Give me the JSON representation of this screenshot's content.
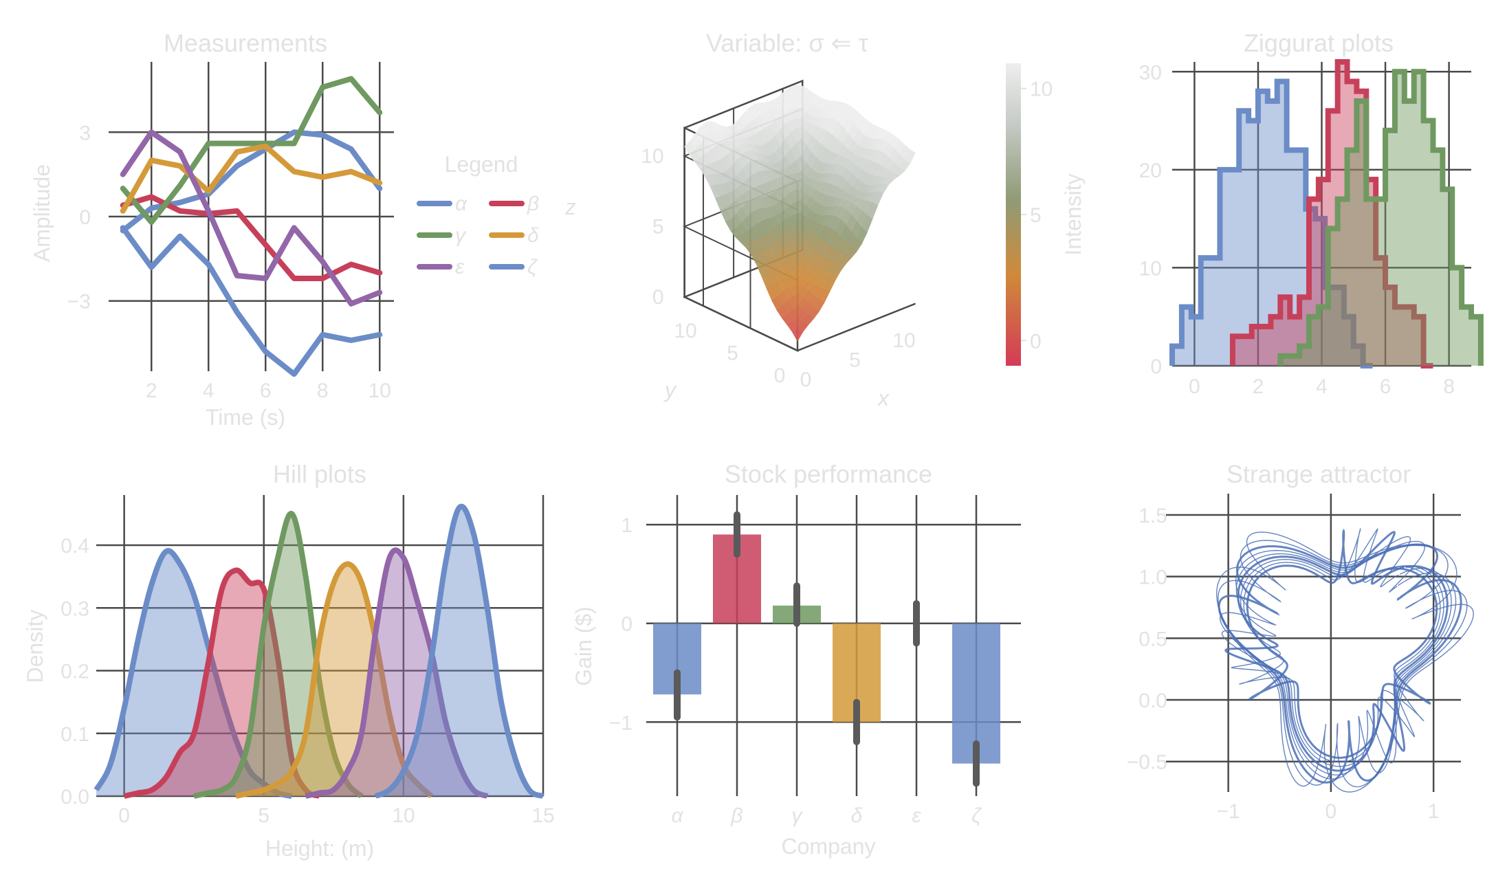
{
  "colors": {
    "blue": "#6b8cc7",
    "red": "#c7405a",
    "green": "#6f9960",
    "orange": "#d49a3a",
    "purple": "#9266a8",
    "grid": "#4a4a4a",
    "text": "#e2e2e2"
  },
  "chart_data": [
    {
      "type": "line",
      "title": "Measurements",
      "xlabel": "Time (s)",
      "ylabel": "Amplitude",
      "xlim": [
        0.5,
        10.5
      ],
      "ylim": [
        -5.5,
        5.5
      ],
      "xticks": [
        2,
        4,
        6,
        8,
        10
      ],
      "xtick_labels": [
        "2",
        "4",
        "6",
        "8",
        "10"
      ],
      "yticks": [
        -3,
        0,
        3
      ],
      "ytick_labels": [
        "−3",
        "0",
        "3"
      ],
      "grid": true,
      "legend": {
        "title": "Legend",
        "placement": "right"
      },
      "x": [
        1,
        2,
        3,
        4,
        5,
        6,
        7,
        8,
        9,
        10
      ],
      "series": [
        {
          "name": "α",
          "color": "#6b8cc7",
          "values": [
            -0.5,
            0.3,
            0.5,
            0.8,
            1.8,
            2.4,
            3.0,
            2.9,
            2.4,
            1.0
          ]
        },
        {
          "name": "β",
          "color": "#c7405a",
          "values": [
            0.4,
            0.7,
            0.2,
            0.1,
            0.2,
            -1.0,
            -2.2,
            -2.2,
            -1.7,
            -2.0
          ]
        },
        {
          "name": "γ",
          "color": "#6f9960",
          "values": [
            1.0,
            -0.2,
            1.1,
            2.6,
            2.6,
            2.6,
            2.6,
            4.6,
            4.9,
            3.7
          ]
        },
        {
          "name": "δ",
          "color": "#d49a3a",
          "values": [
            0.2,
            2.0,
            1.8,
            0.9,
            2.3,
            2.5,
            1.6,
            1.4,
            1.6,
            1.2
          ]
        },
        {
          "name": "ε",
          "color": "#9266a8",
          "values": [
            1.5,
            3.0,
            2.3,
            0.2,
            -2.1,
            -2.2,
            -0.4,
            -1.6,
            -3.1,
            -2.7
          ]
        },
        {
          "name": "ζ",
          "color": "#6b8cc7",
          "values": [
            -0.4,
            -1.8,
            -0.7,
            -1.7,
            -3.4,
            -4.8,
            -5.6,
            -4.2,
            -4.4,
            -4.2
          ]
        }
      ]
    },
    {
      "type": "surface",
      "title": "Variable: σ ⇐ τ",
      "xlabel": "x",
      "ylabel": "y",
      "zlabel": "z",
      "xlim": [
        0,
        12
      ],
      "ylim": [
        0,
        12
      ],
      "zlim": [
        0,
        12
      ],
      "xtick_labels": [
        "0",
        "5",
        "10"
      ],
      "ytick_labels": [
        "0",
        "5",
        "10"
      ],
      "ztick_labels": [
        "0",
        "5",
        "10"
      ],
      "colorbar": {
        "label": "Intensity",
        "tick_labels": [
          "0",
          "5",
          "10"
        ],
        "range": [
          -1,
          11
        ]
      },
      "grid": true
    },
    {
      "type": "histogram",
      "title": "Ziggurat plots",
      "xlim": [
        -0.7,
        8.7
      ],
      "ylim": [
        0,
        31
      ],
      "xticks": [
        0,
        2,
        4,
        6,
        8
      ],
      "xtick_labels": [
        "0",
        "2",
        "4",
        "6",
        "8"
      ],
      "yticks": [
        0,
        10,
        20,
        30
      ],
      "ytick_labels": [
        "0",
        "10",
        "20",
        "30"
      ],
      "grid": true,
      "bin_width": 0.3,
      "series": [
        {
          "color": "#6b8cc7",
          "start": -0.7,
          "counts": [
            2,
            6,
            5,
            11,
            11,
            20,
            20,
            26,
            25,
            28,
            27,
            29,
            22,
            22,
            16,
            15,
            8,
            8,
            5,
            2,
            0
          ]
        },
        {
          "color": "#c7405a",
          "start": 1.2,
          "counts": [
            3,
            3,
            4,
            4,
            5,
            7,
            5,
            7,
            17,
            19,
            26,
            31,
            29,
            28,
            19,
            11,
            8,
            6,
            6,
            5,
            0
          ]
        },
        {
          "color": "#6f9960",
          "start": 2.7,
          "counts": [
            1,
            1,
            2,
            5,
            6,
            14,
            17,
            22,
            27,
            17,
            17,
            24,
            30,
            27,
            30,
            25,
            22,
            18,
            10,
            6,
            5
          ]
        }
      ]
    },
    {
      "type": "area",
      "title": "Hill plots",
      "xlabel": "Height: (m)",
      "ylabel": "Density",
      "xlim": [
        -1,
        15
      ],
      "ylim": [
        0,
        0.48
      ],
      "xticks": [
        0,
        5,
        10,
        15
      ],
      "xtick_labels": [
        "0",
        "5",
        "10",
        "15"
      ],
      "yticks": [
        0,
        0.1,
        0.2,
        0.3,
        0.4
      ],
      "ytick_labels": [
        "0.0",
        "0.1",
        "0.2",
        "0.3",
        "0.4"
      ],
      "grid": true,
      "series": [
        {
          "color": "#6b8cc7",
          "x": [
            -1,
            -0.5,
            0,
            0.5,
            1,
            1.5,
            2,
            2.5,
            3,
            3.5,
            4,
            4.5,
            5,
            5.5,
            6
          ],
          "values": [
            0.01,
            0.05,
            0.14,
            0.25,
            0.34,
            0.39,
            0.37,
            0.32,
            0.24,
            0.16,
            0.09,
            0.04,
            0.02,
            0.005,
            0
          ]
        },
        {
          "color": "#c7405a",
          "x": [
            0,
            0.5,
            1,
            1.5,
            2,
            2.5,
            3,
            3.5,
            4,
            4.5,
            5,
            5.5,
            6,
            6.5,
            7
          ],
          "values": [
            0,
            0.005,
            0.01,
            0.03,
            0.07,
            0.1,
            0.21,
            0.33,
            0.36,
            0.34,
            0.33,
            0.22,
            0.06,
            0.01,
            0
          ]
        },
        {
          "color": "#6f9960",
          "x": [
            2.5,
            3,
            3.5,
            4,
            4.5,
            5,
            5.5,
            6,
            6.5,
            7,
            7.5,
            8,
            8.5
          ],
          "values": [
            0,
            0.005,
            0.01,
            0.03,
            0.1,
            0.27,
            0.38,
            0.45,
            0.35,
            0.18,
            0.07,
            0.02,
            0
          ]
        },
        {
          "color": "#d49a3a",
          "x": [
            4,
            4.5,
            5,
            5.5,
            6,
            6.5,
            7,
            7.5,
            8,
            8.5,
            9,
            9.5,
            10,
            10.5,
            11
          ],
          "values": [
            0,
            0.005,
            0.01,
            0.02,
            0.04,
            0.1,
            0.25,
            0.34,
            0.37,
            0.34,
            0.25,
            0.13,
            0.05,
            0.02,
            0
          ]
        },
        {
          "color": "#9266a8",
          "x": [
            6.5,
            7,
            7.5,
            8,
            8.5,
            9,
            9.5,
            10,
            10.5,
            11,
            11.5,
            12,
            12.5,
            13
          ],
          "values": [
            0,
            0.005,
            0.01,
            0.04,
            0.1,
            0.26,
            0.38,
            0.38,
            0.31,
            0.23,
            0.12,
            0.05,
            0.01,
            0
          ]
        },
        {
          "color": "#6b8cc7",
          "x": [
            9,
            9.5,
            10,
            10.5,
            11,
            11.5,
            12,
            12.5,
            13,
            13.5,
            14,
            14.5,
            15
          ],
          "values": [
            0,
            0.01,
            0.04,
            0.1,
            0.22,
            0.37,
            0.46,
            0.42,
            0.3,
            0.15,
            0.06,
            0.01,
            0
          ]
        }
      ]
    },
    {
      "type": "bar",
      "title": "Stock performance",
      "xlabel": "Company",
      "ylabel": "Gain ($)",
      "categories": [
        "α",
        "β",
        "γ",
        "δ",
        "ε",
        "ζ"
      ],
      "values": [
        -0.72,
        0.9,
        0.18,
        -1.0,
        0,
        -1.42
      ],
      "errors": [
        [
          -0.95,
          -0.5
        ],
        [
          0.7,
          1.1
        ],
        [
          0.0,
          0.38
        ],
        [
          -1.2,
          -0.8
        ],
        [
          -0.2,
          0.2
        ],
        [
          -1.62,
          -1.22
        ]
      ],
      "bar_colors": [
        "#6b8cc7",
        "#c7405a",
        "#6f9960",
        "#d49a3a",
        "#9266a8",
        "#6b8cc7"
      ],
      "ylim": [
        -1.75,
        1.3
      ],
      "yticks": [
        -1,
        0,
        1
      ],
      "ytick_labels": [
        "−1",
        "0",
        "1"
      ],
      "grid": true
    },
    {
      "type": "scatter",
      "title": "Strange attractor",
      "xlim": [
        -1.5,
        1.2
      ],
      "ylim": [
        -0.68,
        1.55
      ],
      "xticks": [
        -1,
        0,
        1
      ],
      "xtick_labels": [
        "−1",
        "0",
        "1"
      ],
      "yticks": [
        -0.5,
        0,
        0.5,
        1.0,
        1.5
      ],
      "ytick_labels": [
        "−0.5",
        "0.0",
        "0.5",
        "1.0",
        "1.5"
      ],
      "color": "#4a6fb5",
      "grid": true
    }
  ]
}
